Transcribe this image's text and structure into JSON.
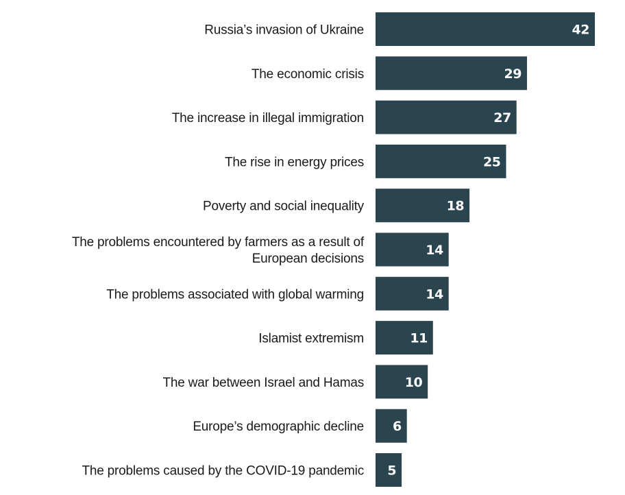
{
  "chart_data": {
    "type": "bar",
    "orientation": "horizontal",
    "categories": [
      [
        "Russia’s invasion of Ukraine"
      ],
      [
        "The economic crisis"
      ],
      [
        "The increase in illegal immigration"
      ],
      [
        "The rise in energy prices"
      ],
      [
        "Poverty and social inequality"
      ],
      [
        "The problems encountered by farmers as a result of",
        "European decisions"
      ],
      [
        "The problems associated with global warming"
      ],
      [
        "Islamist extremism"
      ],
      [
        "The war between Israel and Hamas"
      ],
      [
        "Europe’s demographic decline"
      ],
      [
        "The problems caused by the COVID-19 pandemic"
      ]
    ],
    "values": [
      42,
      29,
      27,
      25,
      18,
      14,
      14,
      11,
      10,
      6,
      5
    ],
    "xlim": [
      0,
      42
    ],
    "grid": false,
    "bar_color": "#2b4550",
    "value_label_color": "#ffffff"
  }
}
